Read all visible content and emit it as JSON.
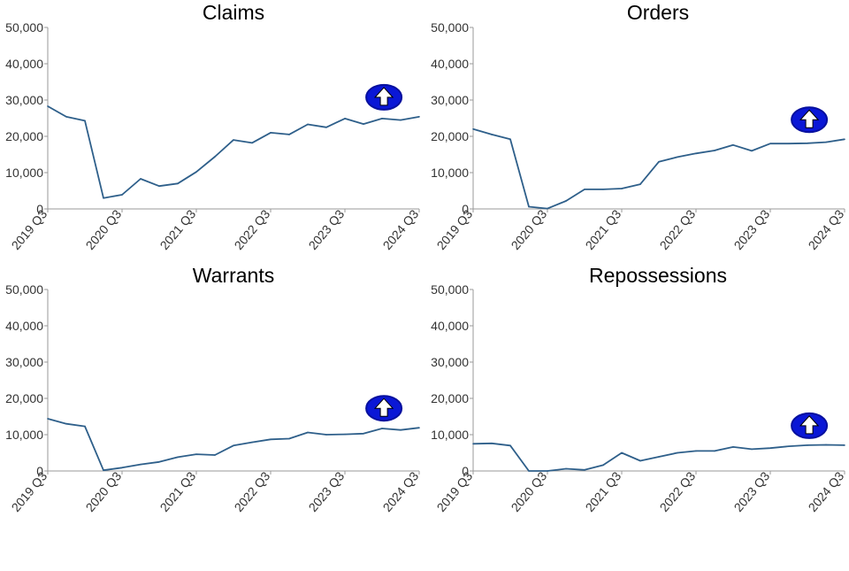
{
  "colors": {
    "line": "#2e5f8a",
    "badge": "#0a17d6",
    "badge_ring": "#07109e",
    "arrow": "#ffffff"
  },
  "badge_icon": "up-arrow-icon",
  "chart_data": [
    {
      "type": "line",
      "title": "Claims",
      "x_tick_labels": [
        "2019 Q3",
        "2020 Q3",
        "2021 Q3",
        "2022 Q3",
        "2023 Q3",
        "2024 Q3"
      ],
      "y_tick_labels": [
        "0",
        "10,000",
        "20,000",
        "30,000",
        "40,000",
        "50,000"
      ],
      "ylim": [
        0,
        50000
      ],
      "values": [
        28300,
        25400,
        24300,
        3000,
        3900,
        8300,
        6300,
        7000,
        10200,
        14400,
        19000,
        18200,
        21000,
        20500,
        23300,
        22500,
        24900,
        23400,
        24900,
        24500,
        25400
      ],
      "trend": "up"
    },
    {
      "type": "line",
      "title": "Orders",
      "x_tick_labels": [
        "2019 Q3",
        "2020 Q3",
        "2021 Q3",
        "2022 Q3",
        "2023 Q3",
        "2024 Q3"
      ],
      "y_tick_labels": [
        "0",
        "10,000",
        "20,000",
        "30,000",
        "40,000",
        "50,000"
      ],
      "ylim": [
        0,
        50000
      ],
      "values": [
        22000,
        20500,
        19200,
        600,
        100,
        2200,
        5400,
        5400,
        5600,
        6800,
        13000,
        14300,
        15300,
        16100,
        17600,
        16000,
        18000,
        18000,
        18100,
        18400,
        19200
      ],
      "trend": "up"
    },
    {
      "type": "line",
      "title": "Warrants",
      "x_tick_labels": [
        "2019 Q3",
        "2020 Q3",
        "2021 Q3",
        "2022 Q3",
        "2023 Q3",
        "2024 Q3"
      ],
      "y_tick_labels": [
        "0",
        "10,000",
        "20,000",
        "30,000",
        "40,000",
        "50,000"
      ],
      "ylim": [
        0,
        50000
      ],
      "values": [
        14400,
        13000,
        12300,
        200,
        900,
        1800,
        2500,
        3800,
        4600,
        4400,
        7000,
        7900,
        8700,
        8900,
        10600,
        10000,
        10100,
        10300,
        11700,
        11300,
        11900
      ],
      "trend": "up"
    },
    {
      "type": "line",
      "title": "Repossessions",
      "x_tick_labels": [
        "2019 Q3",
        "2020 Q3",
        "2021 Q3",
        "2022 Q3",
        "2023 Q3",
        "2024 Q3"
      ],
      "y_tick_labels": [
        "0",
        "10,000",
        "20,000",
        "30,000",
        "40,000",
        "50,000"
      ],
      "ylim": [
        0,
        50000
      ],
      "values": [
        7500,
        7600,
        7000,
        0,
        0,
        600,
        300,
        1600,
        5000,
        2800,
        3900,
        5000,
        5500,
        5500,
        6600,
        6000,
        6300,
        6800,
        7100,
        7200,
        7100
      ],
      "trend": "up"
    }
  ]
}
